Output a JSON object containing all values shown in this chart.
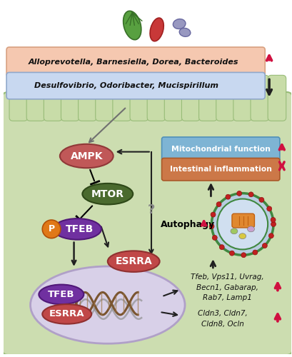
{
  "cell_bg": "#ccddb0",
  "cell_edge": "#98bc78",
  "nucleus_bg": "#d8d0e8",
  "nucleus_edge": "#b0a0c8",
  "box1_fc": "#f5c8b0",
  "box1_ec": "#d8a080",
  "box2_fc": "#c8d8f0",
  "box2_ec": "#90a8cc",
  "mito_fc": "#7eb4d4",
  "mito_ec": "#5090b8",
  "inflam_fc": "#cc7848",
  "inflam_ec": "#aa5828",
  "ampk_fc": "#c05858",
  "ampk_ec": "#903838",
  "mtor_fc": "#4a6a2e",
  "mtor_ec": "#2e4818",
  "tfeb_fc": "#7030a0",
  "tfeb_ec": "#501878",
  "p_fc": "#e07818",
  "p_ec": "#b05008",
  "esrra_fc": "#c04848",
  "esrra_ec": "#903030",
  "arrow_red": "#d01040",
  "arrow_black": "#202020",
  "dna1_color": "#7a5530",
  "dna2_color": "#909090",
  "bacteria_box1_text": "Alloprevotella, Barnesiella, Dorea, Bacteroides",
  "bacteria_box2_text": "Desulfovibrio, Odoribacter, Mucispirillum",
  "gene_text1": "Tfeb, Vps11, Uvrag,\nBecn1, Gabarap,\nRab7, Lamp1",
  "gene_text2": "Cldn3, Cldn7,\nCldn8, Ocln",
  "autophagy_text": "Autophagy",
  "mito_text": "Mitochondrial function",
  "inflam_text": "Intestinal inflammation"
}
